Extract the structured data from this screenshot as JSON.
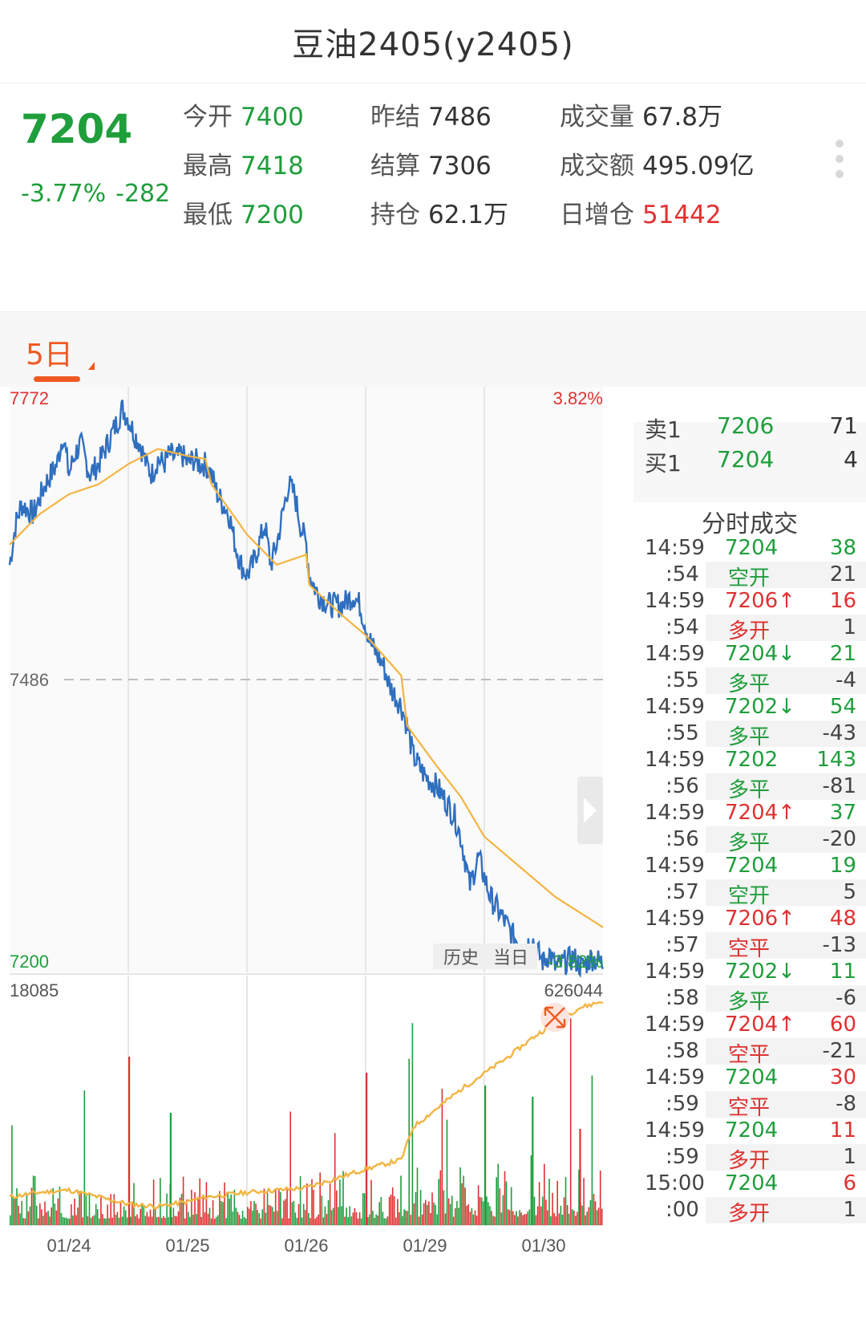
{
  "header": {
    "title": "豆油2405(y2405)"
  },
  "quote": {
    "last": "7204",
    "change_pct": "-3.77%",
    "change": "-282",
    "col1": [
      {
        "label": "今开",
        "value": "7400"
      },
      {
        "label": "最高",
        "value": "7418"
      },
      {
        "label": "最低",
        "value": "7200"
      }
    ],
    "col2": [
      {
        "label": "昨结",
        "value": "7486"
      },
      {
        "label": "结算",
        "value": "7306"
      },
      {
        "label": "持仓",
        "value": "62.1万"
      }
    ],
    "col3": [
      {
        "label": "成交量",
        "value": "67.8万"
      },
      {
        "label": "成交额",
        "value": "495.09亿"
      },
      {
        "label": "日增仓",
        "value": "51442"
      }
    ]
  },
  "tabs": {
    "period": "5日"
  },
  "chart_data": {
    "type": "line",
    "price_axis": {
      "max": 7772,
      "ref": 7486,
      "min": 7200,
      "max_pct": "3.82%",
      "min_pct": "-3.82%"
    },
    "volume_axis": {
      "max": 18085,
      "oi_max": 626044
    },
    "x_labels": [
      "01/24",
      "01/25",
      "01/26",
      "01/29",
      "01/30"
    ],
    "history_button": "历史",
    "today_button": "当日",
    "price_series": [
      [
        0,
        7600
      ],
      [
        0.01,
        7640
      ],
      [
        0.02,
        7660
      ],
      [
        0.04,
        7650
      ],
      [
        0.06,
        7680
      ],
      [
        0.08,
        7700
      ],
      [
        0.09,
        7730
      ],
      [
        0.1,
        7690
      ],
      [
        0.11,
        7710
      ],
      [
        0.12,
        7720
      ],
      [
        0.135,
        7690
      ],
      [
        0.15,
        7700
      ],
      [
        0.165,
        7720
      ],
      [
        0.18,
        7740
      ],
      [
        0.19,
        7755
      ],
      [
        0.2,
        7745
      ],
      [
        0.21,
        7730
      ],
      [
        0.22,
        7720
      ],
      [
        0.23,
        7700
      ],
      [
        0.24,
        7690
      ],
      [
        0.25,
        7705
      ],
      [
        0.26,
        7700
      ],
      [
        0.27,
        7710
      ],
      [
        0.28,
        7705
      ],
      [
        0.29,
        7710
      ],
      [
        0.3,
        7700
      ],
      [
        0.31,
        7705
      ],
      [
        0.32,
        7700
      ],
      [
        0.33,
        7700
      ],
      [
        0.34,
        7690
      ],
      [
        0.35,
        7670
      ],
      [
        0.36,
        7660
      ],
      [
        0.37,
        7650
      ],
      [
        0.38,
        7620
      ],
      [
        0.39,
        7600
      ],
      [
        0.4,
        7590
      ],
      [
        0.41,
        7600
      ],
      [
        0.42,
        7620
      ],
      [
        0.43,
        7640
      ],
      [
        0.44,
        7600
      ],
      [
        0.45,
        7620
      ],
      [
        0.46,
        7650
      ],
      [
        0.47,
        7680
      ],
      [
        0.48,
        7670
      ],
      [
        0.49,
        7640
      ],
      [
        0.5,
        7620
      ],
      [
        0.505,
        7590
      ],
      [
        0.52,
        7570
      ],
      [
        0.54,
        7560
      ],
      [
        0.56,
        7560
      ],
      [
        0.58,
        7570
      ],
      [
        0.59,
        7560
      ],
      [
        0.6,
        7540
      ],
      [
        0.61,
        7520
      ],
      [
        0.62,
        7510
      ],
      [
        0.63,
        7500
      ],
      [
        0.64,
        7480
      ],
      [
        0.66,
        7460
      ],
      [
        0.67,
        7440
      ],
      [
        0.68,
        7410
      ],
      [
        0.69,
        7400
      ],
      [
        0.7,
        7390
      ],
      [
        0.71,
        7385
      ],
      [
        0.72,
        7380
      ],
      [
        0.73,
        7370
      ],
      [
        0.74,
        7360
      ],
      [
        0.75,
        7350
      ],
      [
        0.76,
        7330
      ],
      [
        0.77,
        7300
      ],
      [
        0.775,
        7280
      ],
      [
        0.78,
        7290
      ],
      [
        0.79,
        7310
      ],
      [
        0.8,
        7290
      ],
      [
        0.81,
        7270
      ],
      [
        0.82,
        7260
      ],
      [
        0.83,
        7250
      ],
      [
        0.84,
        7240
      ],
      [
        0.85,
        7230
      ],
      [
        0.86,
        7225
      ],
      [
        0.87,
        7220
      ],
      [
        0.88,
        7230
      ],
      [
        0.89,
        7215
      ],
      [
        0.9,
        7205
      ],
      [
        0.91,
        7215
      ],
      [
        0.92,
        7200
      ],
      [
        0.935,
        7205
      ],
      [
        0.95,
        7210
      ],
      [
        0.965,
        7200
      ],
      [
        0.98,
        7210
      ],
      [
        1,
        7204
      ]
    ],
    "avg_series": [
      [
        0,
        7620
      ],
      [
        0.05,
        7650
      ],
      [
        0.1,
        7670
      ],
      [
        0.15,
        7680
      ],
      [
        0.2,
        7700
      ],
      [
        0.25,
        7715
      ],
      [
        0.3,
        7708
      ],
      [
        0.33,
        7705
      ],
      [
        0.34,
        7680
      ],
      [
        0.4,
        7630
      ],
      [
        0.45,
        7600
      ],
      [
        0.5,
        7610
      ],
      [
        0.505,
        7580
      ],
      [
        0.56,
        7550
      ],
      [
        0.6,
        7530
      ],
      [
        0.66,
        7490
      ],
      [
        0.67,
        7440
      ],
      [
        0.72,
        7400
      ],
      [
        0.76,
        7370
      ],
      [
        0.8,
        7330
      ],
      [
        0.86,
        7300
      ],
      [
        0.92,
        7270
      ],
      [
        1,
        7240
      ]
    ],
    "oi_series": [
      [
        0,
        0.12
      ],
      [
        0.05,
        0.14
      ],
      [
        0.1,
        0.15
      ],
      [
        0.15,
        0.12
      ],
      [
        0.2,
        0.09
      ],
      [
        0.25,
        0.08
      ],
      [
        0.3,
        0.1
      ],
      [
        0.33,
        0.12
      ],
      [
        0.4,
        0.14
      ],
      [
        0.45,
        0.15
      ],
      [
        0.5,
        0.16
      ],
      [
        0.55,
        0.2
      ],
      [
        0.6,
        0.24
      ],
      [
        0.66,
        0.28
      ],
      [
        0.68,
        0.42
      ],
      [
        0.72,
        0.5
      ],
      [
        0.76,
        0.58
      ],
      [
        0.8,
        0.65
      ],
      [
        0.84,
        0.72
      ],
      [
        0.88,
        0.8
      ],
      [
        0.92,
        0.87
      ],
      [
        0.96,
        0.93
      ],
      [
        1,
        0.96
      ]
    ]
  },
  "orderbook": {
    "ask": {
      "label": "卖1",
      "price": "7206",
      "qty": "71"
    },
    "bid": {
      "label": "买1",
      "price": "7204",
      "qty": "4"
    },
    "ticks_title": "分时成交",
    "ticks": [
      {
        "time": "14:59",
        "sec": ":54",
        "price": "7204",
        "arrow": "",
        "vol": "38",
        "vol_dir": "dn",
        "nature": "空开",
        "nature_dir": "dn",
        "oi": "21"
      },
      {
        "time": "14:59",
        "sec": ":54",
        "price": "7206",
        "arrow": "↑",
        "vol": "16",
        "vol_dir": "up",
        "nature": "多开",
        "nature_dir": "up",
        "oi": "1"
      },
      {
        "time": "14:59",
        "sec": ":55",
        "price": "7204",
        "arrow": "↓",
        "vol": "21",
        "vol_dir": "dn",
        "nature": "多平",
        "nature_dir": "dn",
        "oi": "-4"
      },
      {
        "time": "14:59",
        "sec": ":55",
        "price": "7202",
        "arrow": "↓",
        "vol": "54",
        "vol_dir": "dn",
        "nature": "多平",
        "nature_dir": "dn",
        "oi": "-43"
      },
      {
        "time": "14:59",
        "sec": ":56",
        "price": "7202",
        "arrow": "",
        "vol": "143",
        "vol_dir": "dn",
        "nature": "多平",
        "nature_dir": "dn",
        "oi": "-81"
      },
      {
        "time": "14:59",
        "sec": ":56",
        "price": "7204",
        "arrow": "↑",
        "vol": "37",
        "vol_dir": "dn",
        "nature": "多平",
        "nature_dir": "dn",
        "oi": "-20"
      },
      {
        "time": "14:59",
        "sec": ":57",
        "price": "7204",
        "arrow": "",
        "vol": "19",
        "vol_dir": "dn",
        "nature": "空开",
        "nature_dir": "dn",
        "oi": "5"
      },
      {
        "time": "14:59",
        "sec": ":57",
        "price": "7206",
        "arrow": "↑",
        "vol": "48",
        "vol_dir": "up",
        "nature": "空平",
        "nature_dir": "up",
        "oi": "-13"
      },
      {
        "time": "14:59",
        "sec": ":58",
        "price": "7202",
        "arrow": "↓",
        "vol": "11",
        "vol_dir": "dn",
        "nature": "多平",
        "nature_dir": "dn",
        "oi": "-6"
      },
      {
        "time": "14:59",
        "sec": ":58",
        "price": "7204",
        "arrow": "↑",
        "vol": "60",
        "vol_dir": "up",
        "nature": "空平",
        "nature_dir": "up",
        "oi": "-21"
      },
      {
        "time": "14:59",
        "sec": ":59",
        "price": "7204",
        "arrow": "",
        "vol": "30",
        "vol_dir": "up",
        "nature": "空平",
        "nature_dir": "up",
        "oi": "-8"
      },
      {
        "time": "14:59",
        "sec": ":59",
        "price": "7204",
        "arrow": "",
        "vol": "11",
        "vol_dir": "up",
        "nature": "多开",
        "nature_dir": "up",
        "oi": "1"
      },
      {
        "time": "15:00",
        "sec": ":00",
        "price": "7204",
        "arrow": "",
        "vol": "6",
        "vol_dir": "up",
        "nature": "多开",
        "nature_dir": "up",
        "oi": "1"
      }
    ]
  },
  "colors": {
    "up": "#e03131",
    "down": "#1f9e3c",
    "price_line": "#2f6fbf",
    "avg_line": "#f3b441",
    "accent": "#f05a22"
  }
}
